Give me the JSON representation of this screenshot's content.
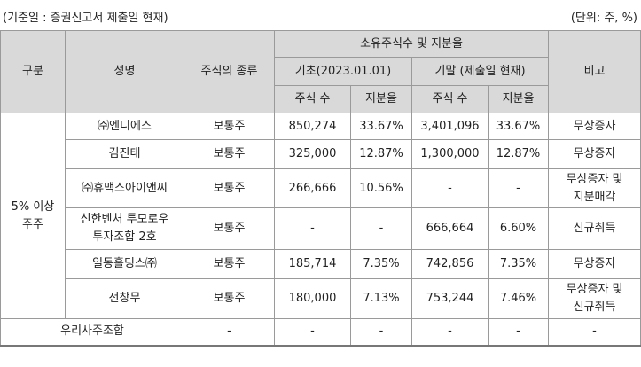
{
  "caption": {
    "left": "(기준일 : 증권신고서 제출일 현재)",
    "right": "(단위: 주, %)"
  },
  "header": {
    "category": "구분",
    "name": "성명",
    "stock_type": "주식의 종류",
    "group": "소유주식수 및 지분율",
    "begin": "기초(2023.01.01)",
    "end": "기말 (제출일 현재)",
    "note": "비고",
    "shares": "주식 수",
    "ratio": "지분율"
  },
  "category_label": [
    "5% 이상",
    "주주"
  ],
  "rows": [
    {
      "name": [
        "㈜엔디에스"
      ],
      "type": "보통주",
      "begin_shares": "850,274",
      "begin_ratio": "33.67%",
      "end_shares": "3,401,096",
      "end_ratio": "33.67%",
      "note": [
        "무상증자"
      ]
    },
    {
      "name": [
        "김진태"
      ],
      "type": "보통주",
      "begin_shares": "325,000",
      "begin_ratio": "12.87%",
      "end_shares": "1,300,000",
      "end_ratio": "12.87%",
      "note": [
        "무상증자"
      ]
    },
    {
      "name": [
        "㈜휴맥스아이앤씨"
      ],
      "type": "보통주",
      "begin_shares": "266,666",
      "begin_ratio": "10.56%",
      "end_shares": "-",
      "end_ratio": "-",
      "note": [
        "무상증자 및",
        "지분매각"
      ]
    },
    {
      "name": [
        "신한벤처 투모로우",
        "투자조합 2호"
      ],
      "type": "보통주",
      "begin_shares": "-",
      "begin_ratio": "-",
      "end_shares": "666,664",
      "end_ratio": "6.60%",
      "note": [
        "신규취득"
      ]
    },
    {
      "name": [
        "일동홀딩스㈜"
      ],
      "type": "보통주",
      "begin_shares": "185,714",
      "begin_ratio": "7.35%",
      "end_shares": "742,856",
      "end_ratio": "7.35%",
      "note": [
        "무상증자"
      ]
    },
    {
      "name": [
        "전창무"
      ],
      "type": "보통주",
      "begin_shares": "180,000",
      "begin_ratio": "7.13%",
      "end_shares": "753,244",
      "end_ratio": "7.46%",
      "note": [
        "무상증자 및",
        "신규취득"
      ]
    }
  ],
  "last_row": {
    "name": "우리사주조합",
    "type": "-",
    "begin_shares": "-",
    "begin_ratio": "-",
    "end_shares": "-",
    "end_ratio": "-",
    "note": "-"
  }
}
